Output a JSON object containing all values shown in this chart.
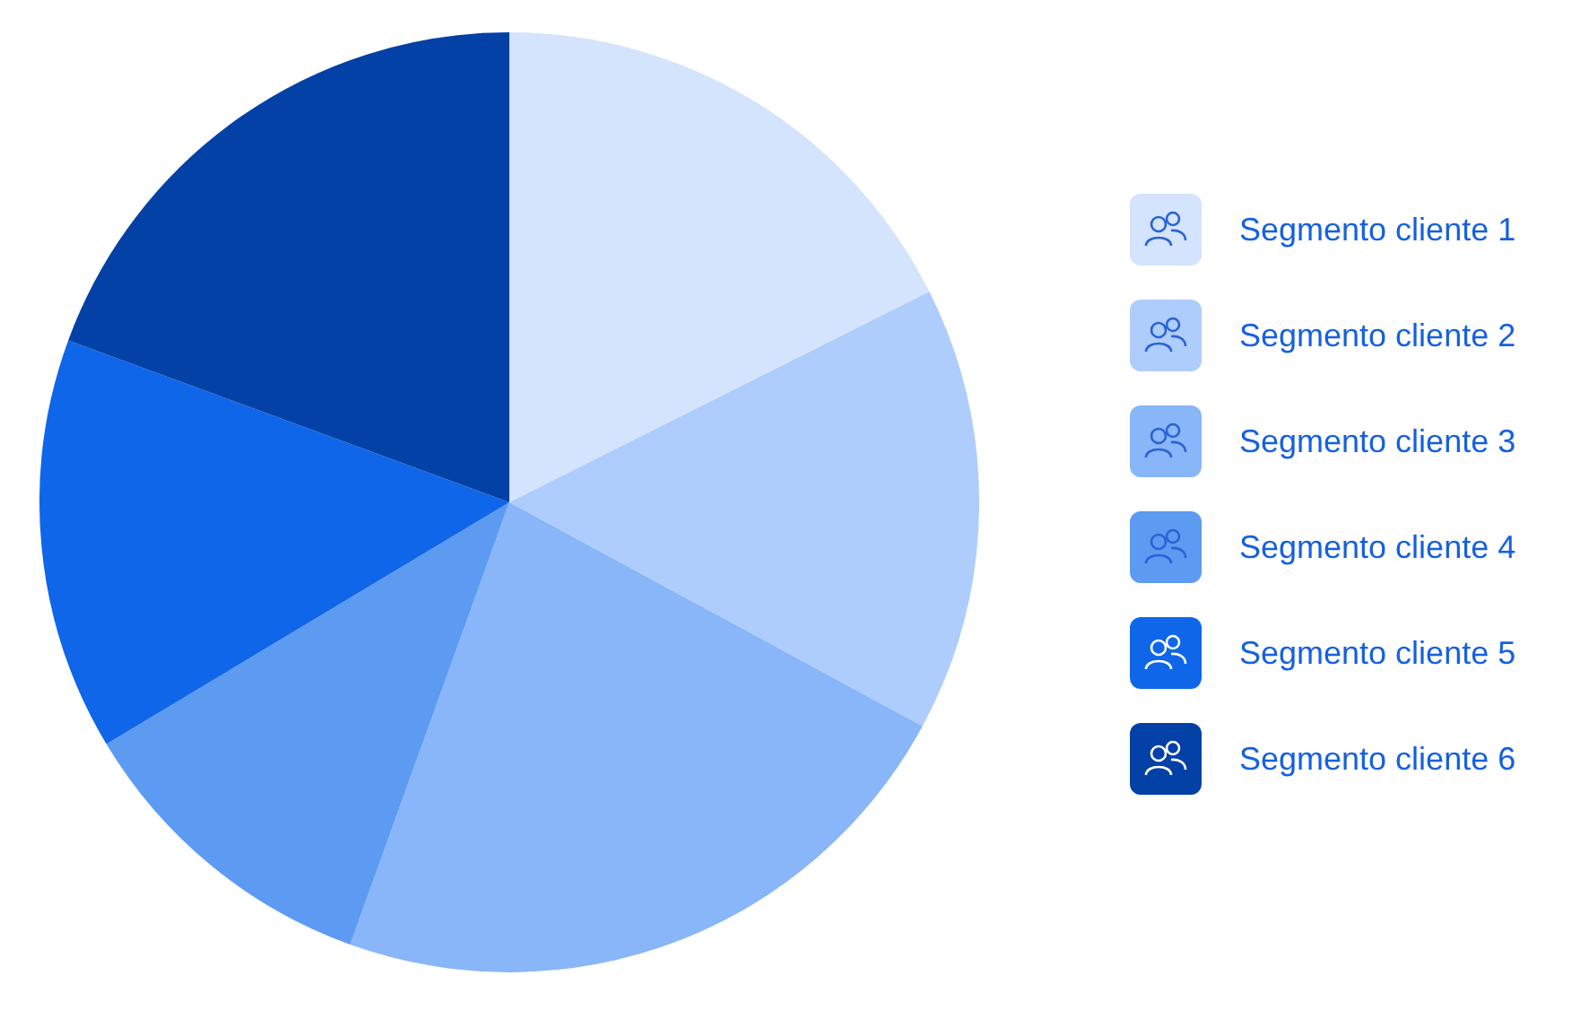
{
  "chart_data": {
    "type": "pie",
    "categories": [
      "Segmento cliente 1",
      "Segmento cliente 2",
      "Segmento cliente 3",
      "Segmento cliente 4",
      "Segmento cliente 5",
      "Segmento cliente 6"
    ],
    "values": [
      17.6,
      15.3,
      22.6,
      10.9,
      14.2,
      19.4
    ],
    "colors": [
      "#d4e4fd",
      "#aecdfc",
      "#88b6f8",
      "#5d9bf3",
      "#0f66e9",
      "#0441a6"
    ],
    "legend": "right"
  }
}
